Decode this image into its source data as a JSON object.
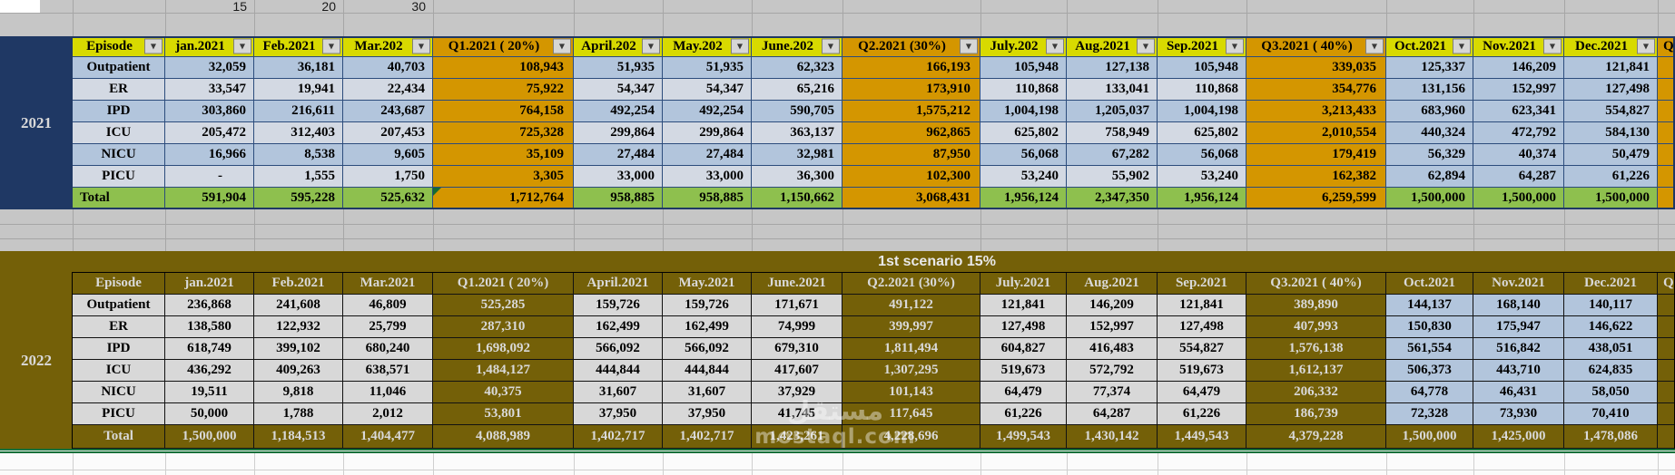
{
  "top_row": {
    "values": [
      "15",
      "20",
      "30"
    ]
  },
  "colors": {
    "background": "#c6c6c6",
    "navy": "#1f3864",
    "header_yellow": "#d8da00",
    "quarter_gold": "#d49600",
    "cell_blue": "#b2c5dc",
    "cell_blue_light": "#d3d9e3",
    "total_green": "#8ec04e",
    "olive": "#746008",
    "cell_gray": "#d8d8d8",
    "light_text": "#d9d9d9",
    "green_line": "#17713b",
    "grid_line_gray": "#a6a6a6"
  },
  "watermark": {
    "logo_text": "مستقل",
    "domain": "mostaql.com"
  },
  "tables": [
    {
      "year": "2021",
      "title": "",
      "has_filter_buttons": true,
      "columns": [
        {
          "label": "Episode",
          "type": "episode",
          "fill": "band"
        },
        {
          "label": "jan.2021",
          "type": "month",
          "fill": "band"
        },
        {
          "label": "Feb.2021",
          "type": "month",
          "fill": "band"
        },
        {
          "label": "Mar.202",
          "type": "month",
          "fill": "band"
        },
        {
          "label": "Q1.2021 ( 20%)",
          "type": "quarter",
          "fill": "gold"
        },
        {
          "label": "April.202",
          "type": "month",
          "fill": "band"
        },
        {
          "label": "May.202",
          "type": "month",
          "fill": "band"
        },
        {
          "label": "June.202",
          "type": "month",
          "fill": "band"
        },
        {
          "label": "Q2.2021 (30%)",
          "type": "quarter",
          "fill": "gold"
        },
        {
          "label": "July.202",
          "type": "month",
          "fill": "band"
        },
        {
          "label": "Aug.2021",
          "type": "month",
          "fill": "band"
        },
        {
          "label": "Sep.2021",
          "type": "month",
          "fill": "band"
        },
        {
          "label": "Q3.2021 ( 40%)",
          "type": "quarter",
          "fill": "gold"
        },
        {
          "label": "Oct.2021",
          "type": "month",
          "fill": "blue"
        },
        {
          "label": "Nov.2021",
          "type": "month",
          "fill": "blue"
        },
        {
          "label": "Dec.2021",
          "type": "month",
          "fill": "blue"
        },
        {
          "label": "Q",
          "type": "stub",
          "fill": "gold"
        }
      ],
      "rows": [
        {
          "label": "Outpatient",
          "values": [
            "32,059",
            "36,181",
            "40,703",
            "108,943",
            "51,935",
            "51,935",
            "62,323",
            "166,193",
            "105,948",
            "127,138",
            "105,948",
            "339,035",
            "125,337",
            "146,209",
            "121,841"
          ]
        },
        {
          "label": "ER",
          "values": [
            "33,547",
            "19,941",
            "22,434",
            "75,922",
            "54,347",
            "54,347",
            "65,216",
            "173,910",
            "110,868",
            "133,041",
            "110,868",
            "354,776",
            "131,156",
            "152,997",
            "127,498"
          ]
        },
        {
          "label": "IPD",
          "values": [
            "303,860",
            "216,611",
            "243,687",
            "764,158",
            "492,254",
            "492,254",
            "590,705",
            "1,575,212",
            "1,004,198",
            "1,205,037",
            "1,004,198",
            "3,213,433",
            "683,960",
            "623,341",
            "554,827"
          ]
        },
        {
          "label": "ICU",
          "values": [
            "205,472",
            "312,403",
            "207,453",
            "725,328",
            "299,864",
            "299,864",
            "363,137",
            "962,865",
            "625,802",
            "758,949",
            "625,802",
            "2,010,554",
            "440,324",
            "472,792",
            "584,130"
          ]
        },
        {
          "label": "NICU",
          "values": [
            "16,966",
            "8,538",
            "9,605",
            "35,109",
            "27,484",
            "27,484",
            "32,981",
            "87,950",
            "56,068",
            "67,282",
            "56,068",
            "179,419",
            "56,329",
            "40,374",
            "50,479"
          ]
        },
        {
          "label": "PICU",
          "values": [
            "-",
            "1,555",
            "1,750",
            "3,305",
            "33,000",
            "33,000",
            "36,300",
            "102,300",
            "53,240",
            "55,902",
            "53,240",
            "162,382",
            "62,894",
            "64,287",
            "61,226"
          ]
        }
      ],
      "total_label": "Total",
      "total_values": [
        "591,904",
        "595,228",
        "525,632",
        "1,712,764",
        "958,885",
        "958,885",
        "1,150,662",
        "3,068,431",
        "1,956,124",
        "2,347,350",
        "1,956,124",
        "6,259,599",
        "1,500,000",
        "1,500,000",
        "1,500,000"
      ]
    },
    {
      "year": "2022",
      "title": "1st scenario 15%",
      "has_filter_buttons": false,
      "columns": [
        {
          "label": "Episode",
          "type": "episode",
          "fill": "gray"
        },
        {
          "label": "jan.2021",
          "type": "month",
          "fill": "gray"
        },
        {
          "label": "Feb.2021",
          "type": "month",
          "fill": "gray"
        },
        {
          "label": "Mar.2021",
          "type": "month",
          "fill": "gray"
        },
        {
          "label": "Q1.2021 ( 20%)",
          "type": "quarter",
          "fill": "olive"
        },
        {
          "label": "April.2021",
          "type": "month",
          "fill": "gray"
        },
        {
          "label": "May.2021",
          "type": "month",
          "fill": "gray"
        },
        {
          "label": "June.2021",
          "type": "month",
          "fill": "gray"
        },
        {
          "label": "Q2.2021 (30%)",
          "type": "quarter",
          "fill": "olive"
        },
        {
          "label": "July.2021",
          "type": "month",
          "fill": "gray"
        },
        {
          "label": "Aug.2021",
          "type": "month",
          "fill": "gray"
        },
        {
          "label": "Sep.2021",
          "type": "month",
          "fill": "gray"
        },
        {
          "label": "Q3.2021 ( 40%)",
          "type": "quarter",
          "fill": "olive"
        },
        {
          "label": "Oct.2021",
          "type": "month",
          "fill": "blue"
        },
        {
          "label": "Nov.2021",
          "type": "month",
          "fill": "blue"
        },
        {
          "label": "Dec.2021",
          "type": "month",
          "fill": "blue"
        },
        {
          "label": "Q",
          "type": "stub",
          "fill": "olive"
        }
      ],
      "rows": [
        {
          "label": "Outpatient",
          "values": [
            "236,868",
            "241,608",
            "46,809",
            "525,285",
            "159,726",
            "159,726",
            "171,671",
            "491,122",
            "121,841",
            "146,209",
            "121,841",
            "389,890",
            "144,137",
            "168,140",
            "140,117"
          ]
        },
        {
          "label": "ER",
          "values": [
            "138,580",
            "122,932",
            "25,799",
            "287,310",
            "162,499",
            "162,499",
            "74,999",
            "399,997",
            "127,498",
            "152,997",
            "127,498",
            "407,993",
            "150,830",
            "175,947",
            "146,622"
          ]
        },
        {
          "label": "IPD",
          "values": [
            "618,749",
            "399,102",
            "680,240",
            "1,698,092",
            "566,092",
            "566,092",
            "679,310",
            "1,811,494",
            "604,827",
            "416,483",
            "554,827",
            "1,576,138",
            "561,554",
            "516,842",
            "438,051"
          ]
        },
        {
          "label": "ICU",
          "values": [
            "436,292",
            "409,263",
            "638,571",
            "1,484,127",
            "444,844",
            "444,844",
            "417,607",
            "1,307,295",
            "519,673",
            "572,792",
            "519,673",
            "1,612,137",
            "506,373",
            "443,710",
            "624,835"
          ]
        },
        {
          "label": "NICU",
          "values": [
            "19,511",
            "9,818",
            "11,046",
            "40,375",
            "31,607",
            "31,607",
            "37,929",
            "101,143",
            "64,479",
            "77,374",
            "64,479",
            "206,332",
            "64,778",
            "46,431",
            "58,050"
          ]
        },
        {
          "label": "PICU",
          "values": [
            "50,000",
            "1,788",
            "2,012",
            "53,801",
            "37,950",
            "37,950",
            "41,745",
            "117,645",
            "61,226",
            "64,287",
            "61,226",
            "186,739",
            "72,328",
            "73,930",
            "70,410"
          ]
        }
      ],
      "total_label": "Total",
      "total_values": [
        "1,500,000",
        "1,184,513",
        "1,404,477",
        "4,088,989",
        "1,402,717",
        "1,402,717",
        "1,423,261",
        "4,228,696",
        "1,499,543",
        "1,430,142",
        "1,449,543",
        "4,379,228",
        "1,500,000",
        "1,425,000",
        "1,478,086"
      ]
    }
  ]
}
